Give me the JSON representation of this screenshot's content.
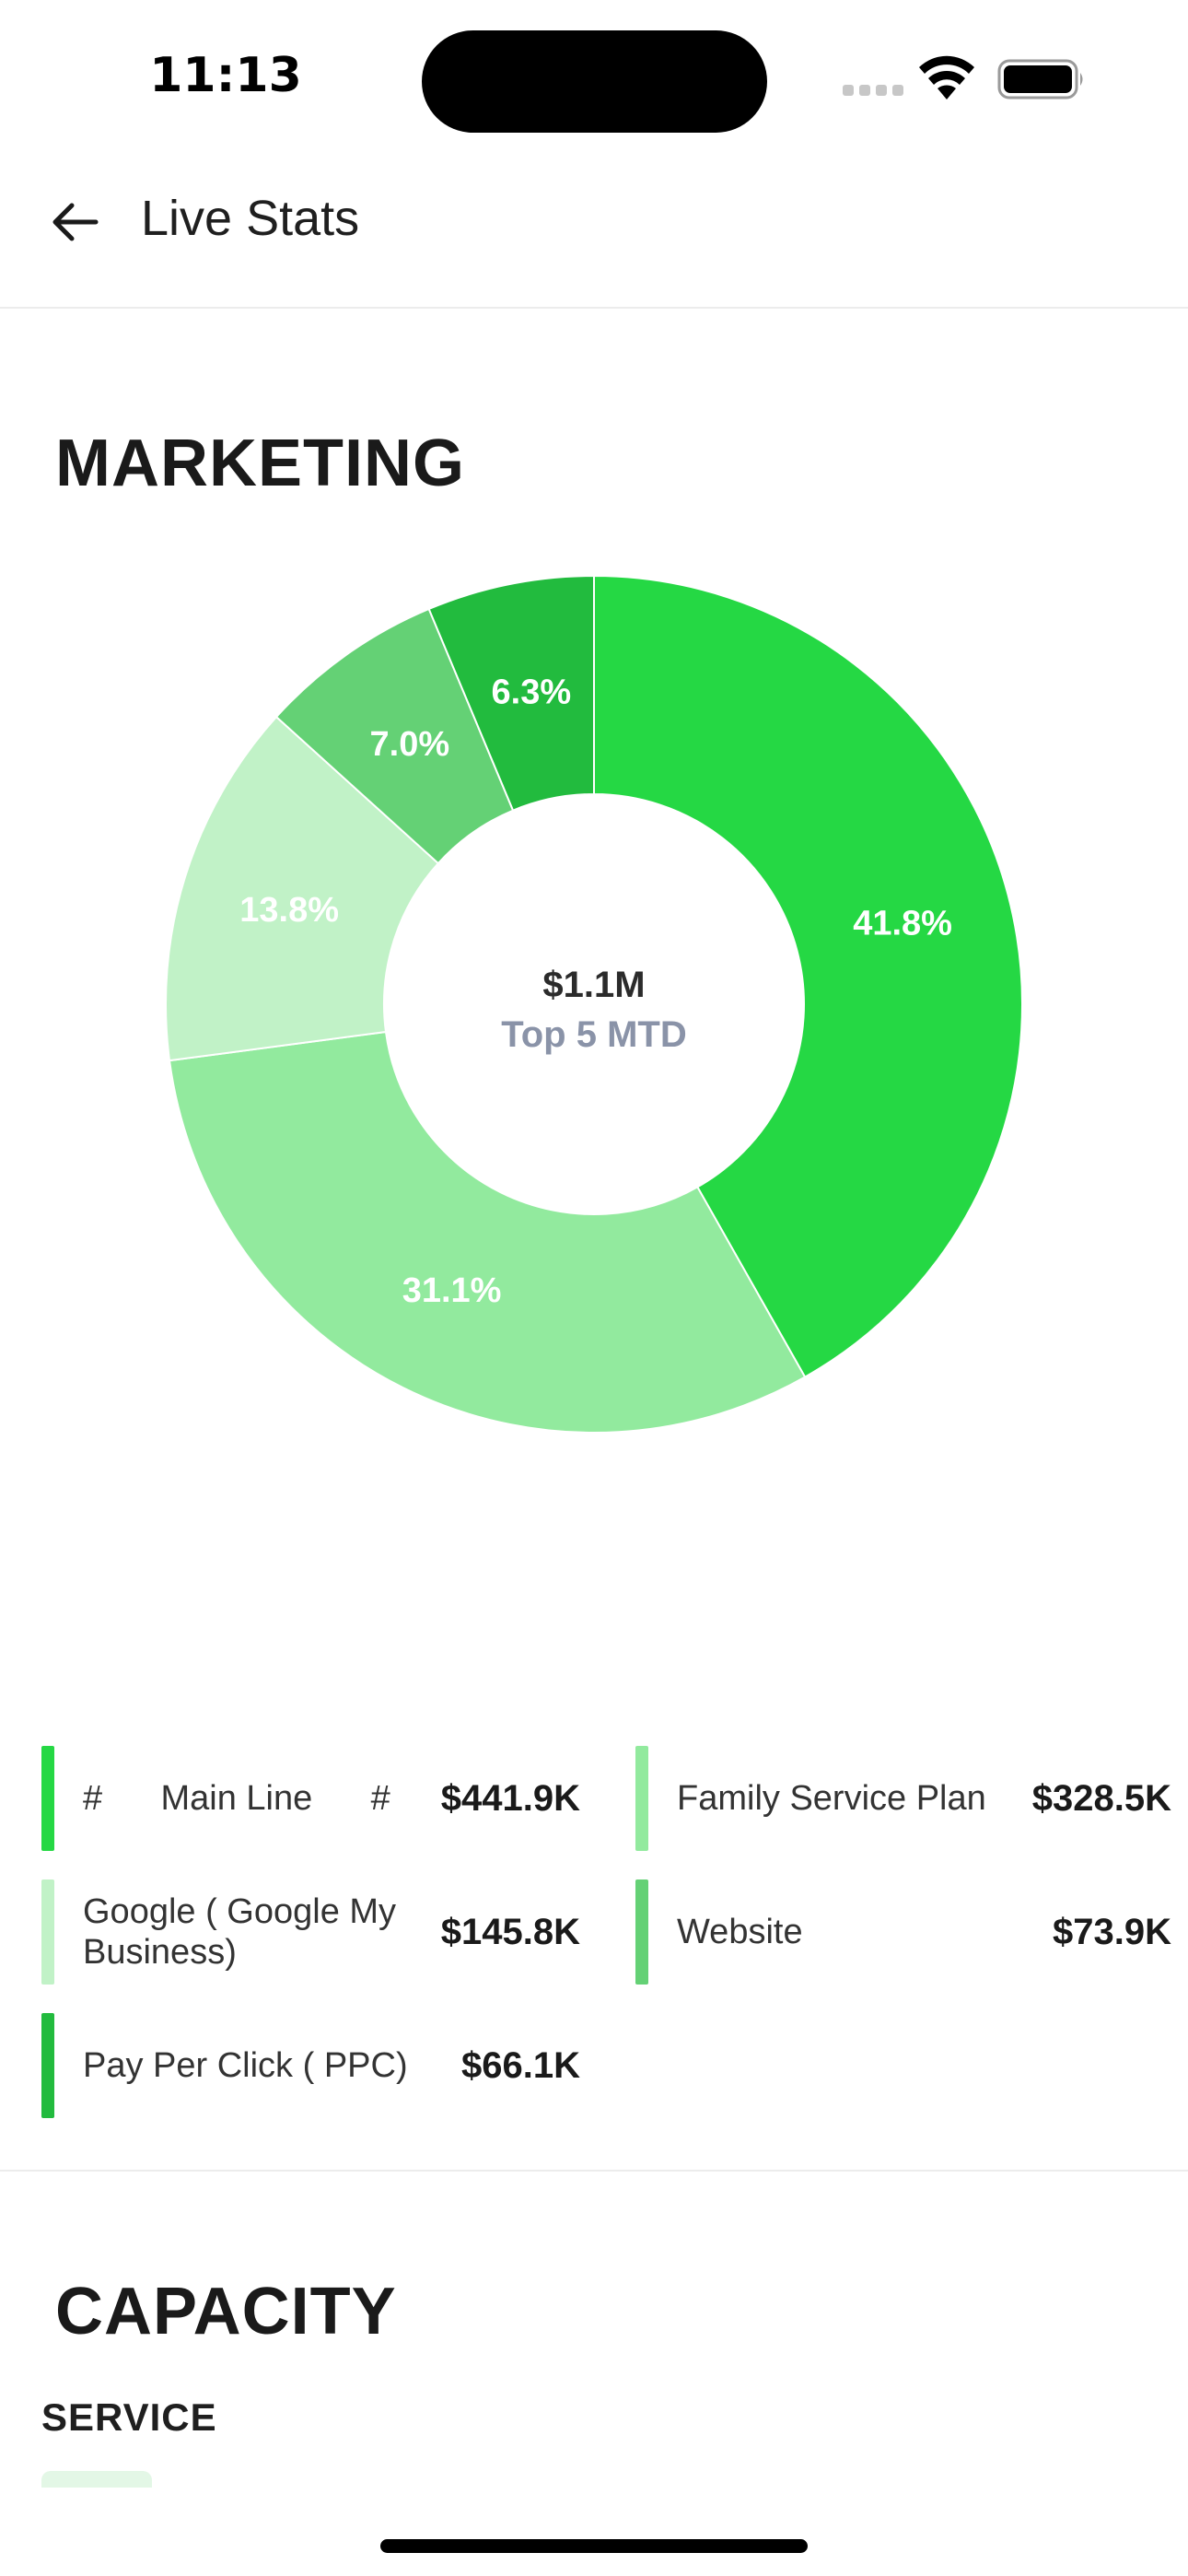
{
  "status_bar": {
    "time": "11:13"
  },
  "header": {
    "back_icon": "arrow-left-icon",
    "title": "Live Stats"
  },
  "marketing": {
    "title": "MARKETING",
    "center_value": "$1.1M",
    "center_caption": "Top 5 MTD",
    "legend": [
      {
        "label": "#      Main Line      #",
        "value": "$441.9K",
        "color": "#25d844"
      },
      {
        "label": "Family Service Plan",
        "value": "$328.5K",
        "color": "#92ea9e"
      },
      {
        "label": "Google ( Google My Business)",
        "value": "$145.8K",
        "color": "#c1f2c7"
      },
      {
        "label": "Website",
        "value": "$73.9K",
        "color": "#64d175"
      },
      {
        "label": "Pay Per Click ( PPC)",
        "value": "$66.1K",
        "color": "#22bb3e"
      }
    ]
  },
  "chart_data": {
    "type": "pie",
    "donut": true,
    "center_text": [
      "$1.1M",
      "Top 5 MTD"
    ],
    "categories": [
      "#      Main Line      #",
      "Family Service Plan",
      "Google ( Google My Business)",
      "Website",
      "Pay Per Click ( PPC)"
    ],
    "values": [
      41.8,
      31.1,
      13.8,
      7.0,
      6.3
    ],
    "labels": [
      "41.8%",
      "31.1%",
      "13.8%",
      "7.0%",
      "6.3%"
    ],
    "amounts": [
      "$441.9K",
      "$328.5K",
      "$145.8K",
      "$73.9K",
      "$66.1K"
    ],
    "colors": [
      "#25d844",
      "#92ea9e",
      "#c1f2c7",
      "#64d175",
      "#22bb3e"
    ],
    "legend_position": "bottom"
  },
  "capacity": {
    "title": "CAPACITY",
    "subtitle": "SERVICE"
  }
}
